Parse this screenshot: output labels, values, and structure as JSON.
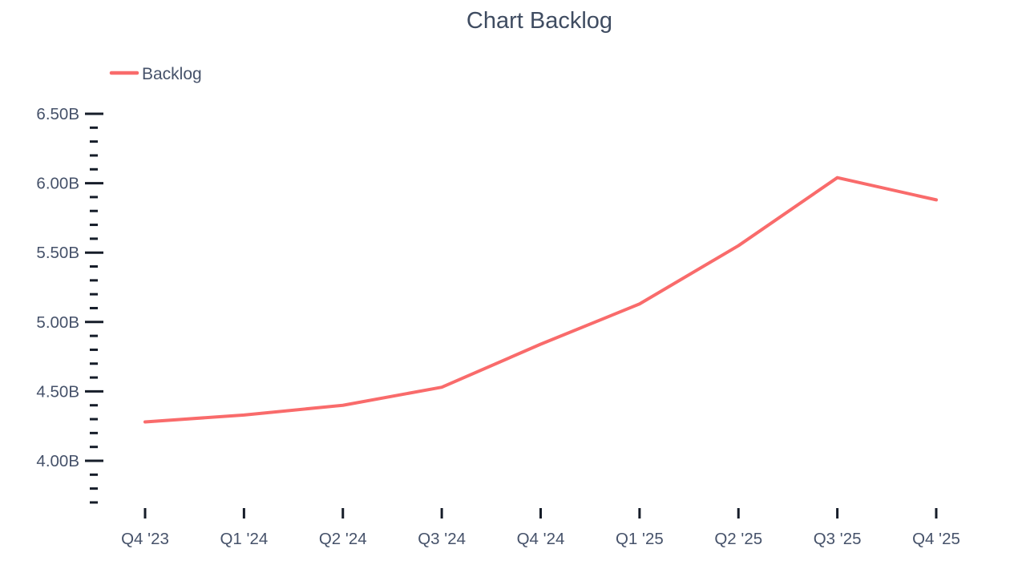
{
  "title": "Chart Backlog",
  "legend": {
    "position": "top-left",
    "items": [
      {
        "label": "Backlog",
        "swatch_color": "#f96b6b"
      }
    ]
  },
  "colors": {
    "background": "#ffffff",
    "line": "#f96b6b",
    "title_text": "#3f4c61",
    "label_text": "#46526a",
    "tick_mark": "#161d29"
  },
  "chart_data": {
    "type": "line",
    "title": "Chart Backlog",
    "xlabel": "",
    "ylabel": "",
    "grid": false,
    "legend_position": "top-left",
    "categories": [
      "Q4 '23",
      "Q1 '24",
      "Q2 '24",
      "Q3 '24",
      "Q4 '24",
      "Q1 '25",
      "Q2 '25",
      "Q3 '25",
      "Q4 '25"
    ],
    "series": [
      {
        "name": "Backlog",
        "color": "#f96b6b",
        "unit": "B",
        "values_billions": [
          4.28,
          4.33,
          4.4,
          4.53,
          4.84,
          5.13,
          5.55,
          6.04,
          5.88
        ]
      }
    ],
    "y_axis": {
      "range_billions": [
        3.7,
        6.5
      ],
      "minor_tick_step_billions": 0.1,
      "major_ticks": [
        {
          "value": 4.0,
          "label": "4.00B"
        },
        {
          "value": 4.5,
          "label": "4.50B"
        },
        {
          "value": 5.0,
          "label": "5.00B"
        },
        {
          "value": 5.5,
          "label": "5.50B"
        },
        {
          "value": 6.0,
          "label": "6.00B"
        },
        {
          "value": 6.5,
          "label": "6.50B"
        }
      ]
    }
  }
}
